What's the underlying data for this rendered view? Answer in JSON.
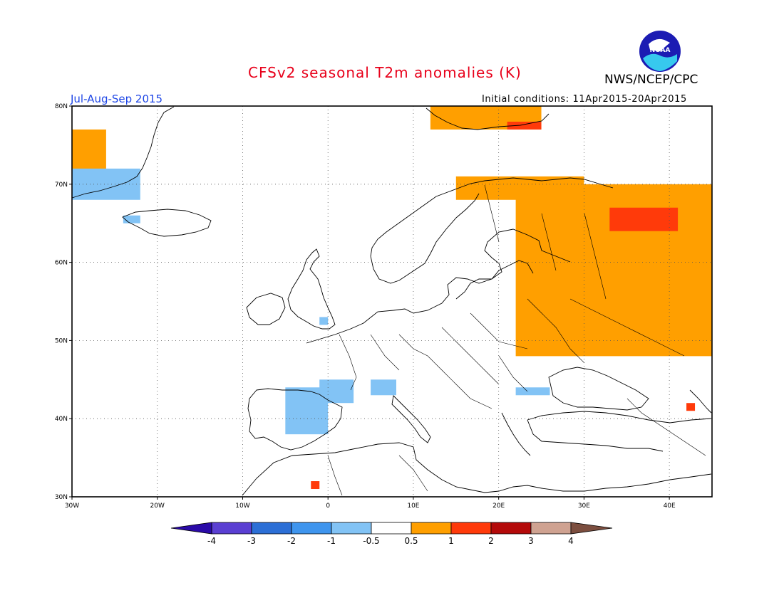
{
  "header": {
    "title": "CFSv2 seasonal T2m anomalies (K)",
    "organization": "NWS/NCEP/CPC",
    "period": "Jul-Aug-Sep 2015",
    "initial_conditions": "Initial conditions: 11Apr2015-20Apr2015",
    "logo_text": "NOAA"
  },
  "colors": {
    "title": "#e8001a",
    "period": "#1e46e6",
    "frame": "#000000",
    "grid": "#555555",
    "coast": "#000000"
  },
  "map": {
    "lon_range": [
      -30,
      45
    ],
    "lat_range": [
      30,
      80
    ],
    "lon_ticks": [
      {
        "value": -30,
        "label": "30W"
      },
      {
        "value": -20,
        "label": "20W"
      },
      {
        "value": -10,
        "label": "10W"
      },
      {
        "value": 0,
        "label": "0"
      },
      {
        "value": 10,
        "label": "10E"
      },
      {
        "value": 20,
        "label": "20E"
      },
      {
        "value": 30,
        "label": "30E"
      },
      {
        "value": 40,
        "label": "40E"
      }
    ],
    "lat_ticks": [
      {
        "value": 30,
        "label": "30N"
      },
      {
        "value": 40,
        "label": "40N"
      },
      {
        "value": 50,
        "label": "50N"
      },
      {
        "value": 60,
        "label": "60N"
      },
      {
        "value": 70,
        "label": "70N"
      },
      {
        "value": 80,
        "label": "80N"
      }
    ],
    "grid": "dotted",
    "anomaly_patches": [
      {
        "name": "russia-warm",
        "class": "0.5 to 1",
        "color": "#ff9f00",
        "lon": [
          22,
          45
        ],
        "lat": [
          48,
          70
        ]
      },
      {
        "name": "scandinavia-north-warm",
        "class": "0.5 to 1",
        "color": "#ff9f00",
        "lon": [
          15,
          30
        ],
        "lat": [
          68,
          71
        ]
      },
      {
        "name": "svalbard-warm",
        "class": "0.5 to 1",
        "color": "#ff9f00",
        "lon": [
          12,
          25
        ],
        "lat": [
          77,
          80
        ]
      },
      {
        "name": "greenland-warm",
        "class": "0.5 to 1",
        "color": "#ff9f00",
        "lon": [
          -30,
          -26
        ],
        "lat": [
          69,
          77
        ]
      },
      {
        "name": "kola-hot",
        "class": "1 to 2",
        "color": "#ff3a0a",
        "lon": [
          33,
          41
        ],
        "lat": [
          64,
          67
        ]
      },
      {
        "name": "svalbard-hot",
        "class": "1 to 2",
        "color": "#ff3a0a",
        "lon": [
          21,
          25
        ],
        "lat": [
          77,
          78
        ]
      },
      {
        "name": "caucasus-hot",
        "class": "1 to 2",
        "color": "#ff3a0a",
        "lon": [
          42,
          43
        ],
        "lat": [
          41,
          42
        ]
      },
      {
        "name": "morocco-hot",
        "class": "1 to 2",
        "color": "#ff3a0a",
        "lon": [
          -2,
          -1
        ],
        "lat": [
          31,
          32
        ]
      },
      {
        "name": "iberia-cool",
        "class": "-1 to -0.5",
        "color": "#82c3f5",
        "lon": [
          -5,
          0
        ],
        "lat": [
          38,
          44
        ]
      },
      {
        "name": "pyrenees-cool",
        "class": "-1 to -0.5",
        "color": "#82c3f5",
        "lon": [
          -1,
          3
        ],
        "lat": [
          42,
          45
        ]
      },
      {
        "name": "alps-cool",
        "class": "-1 to -0.5",
        "color": "#82c3f5",
        "lon": [
          5,
          8
        ],
        "lat": [
          43,
          45
        ]
      },
      {
        "name": "bulgaria-cool",
        "class": "-1 to -0.5",
        "color": "#82c3f5",
        "lon": [
          22,
          26
        ],
        "lat": [
          43,
          44
        ]
      },
      {
        "name": "iceland-cool",
        "class": "-1 to -0.5",
        "color": "#82c3f5",
        "lon": [
          -24,
          -22
        ],
        "lat": [
          65,
          66
        ]
      },
      {
        "name": "greenland-cool",
        "class": "-1 to -0.5",
        "color": "#82c3f5",
        "lon": [
          -30,
          -22
        ],
        "lat": [
          68,
          72
        ]
      },
      {
        "name": "england-cool",
        "class": "-1 to -0.5",
        "color": "#82c3f5",
        "lon": [
          -1,
          0
        ],
        "lat": [
          52,
          53
        ]
      }
    ]
  },
  "colorbar": {
    "labels": [
      "-4",
      "-3",
      "-2",
      "-1",
      "-0.5",
      "0.5",
      "1",
      "2",
      "3",
      "4"
    ],
    "low_color": "#2a0aa8",
    "high_color": "#7c4e3f",
    "bins": [
      "#5a3fd2",
      "#2c6fd6",
      "#3f95ee",
      "#82c3f5",
      "#ffffff",
      "#ff9f00",
      "#ff3a0a",
      "#b40a0a",
      "#cfa291"
    ]
  }
}
